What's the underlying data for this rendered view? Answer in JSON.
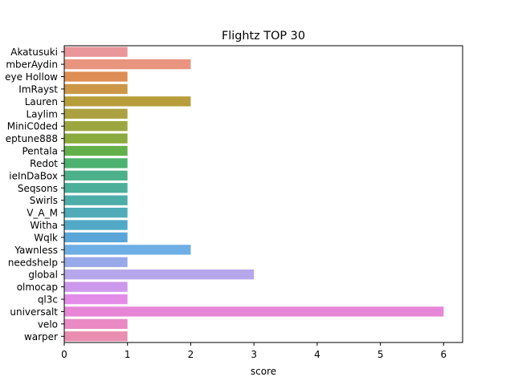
{
  "chart_data": {
    "type": "bar",
    "orientation": "horizontal",
    "title": "Flightz TOP 30",
    "xlabel": "score",
    "ylabel": "",
    "xlim": [
      0,
      6.3
    ],
    "xticks": [
      0,
      1,
      2,
      3,
      4,
      5,
      6
    ],
    "grid": false,
    "categories": [
      "Akatusuki",
      "mberAydin",
      "eye Hollow",
      "ImRayst",
      "Lauren",
      "Laylim",
      "MiniC0ded",
      "eptune888",
      "Pentala",
      "Redot",
      "ieInDaBox",
      "Seqsons",
      "Swirls",
      "V_A_M",
      "Witha",
      "Wqlk",
      "Yawnless",
      "needshelp",
      "global",
      "olmocap",
      "ql3c",
      "universalt",
      "velo",
      "warper"
    ],
    "values": [
      1,
      2,
      1,
      1,
      2,
      1,
      1,
      1,
      1,
      1,
      1,
      1,
      1,
      1,
      1,
      1,
      2,
      1,
      3,
      1,
      1,
      6,
      1,
      1
    ],
    "colors": [
      "#e8969a",
      "#e8947e",
      "#de8d54",
      "#cc9848",
      "#b79e3b",
      "#aba140",
      "#9ca63f",
      "#8aaa3e",
      "#63b04a",
      "#4db26f",
      "#4cb08b",
      "#4baf9a",
      "#4cada9",
      "#4eabb7",
      "#52a9c6",
      "#5aa6d8",
      "#6daee4",
      "#98a9ea",
      "#b6a6ec",
      "#cc98ec",
      "#e28ce8",
      "#e786d7",
      "#e98ac4",
      "#e98eb0"
    ]
  }
}
